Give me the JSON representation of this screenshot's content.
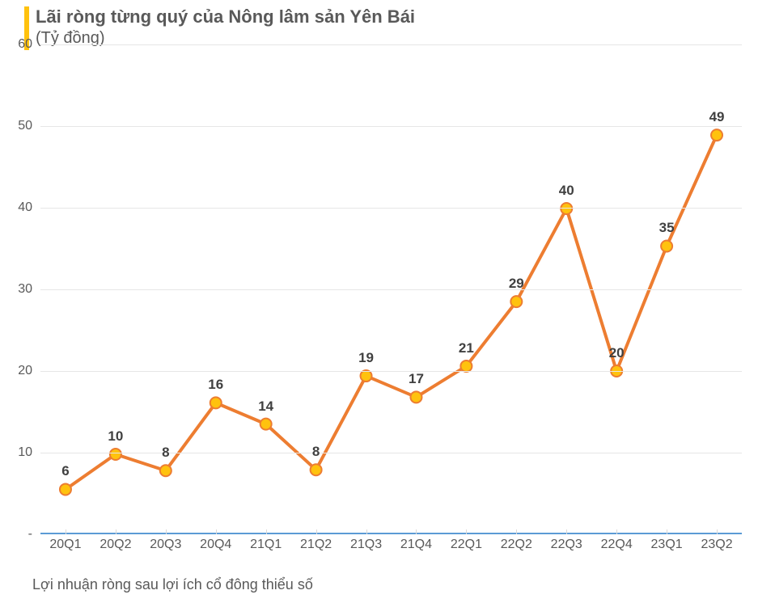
{
  "chart": {
    "type": "line",
    "title": "Lãi ròng từng quý của Nông lâm sản Yên Bái",
    "subtitle": "(Tỷ đồng)",
    "footer_note": "Lợi nhuận ròng sau lợi ích cổ đông thiểu số",
    "accent_color": "#ffc20e",
    "line_color": "#ed7d31",
    "line_width": 4,
    "marker_fill": "#ffc20e",
    "marker_stroke": "#ed7d31",
    "marker_stroke_width": 2,
    "marker_radius": 7,
    "grid_color": "#e6e6e6",
    "axis_color": "#5b9bd5",
    "text_color": "#595959",
    "data_label_color": "#404040",
    "title_fontsize": 22,
    "subtitle_fontsize": 20,
    "label_fontsize": 16,
    "data_label_fontsize": 17,
    "footer_fontsize": 18,
    "ylim": [
      0,
      60
    ],
    "ytick_step": 10,
    "y_ticks": [
      0,
      10,
      20,
      30,
      40,
      50,
      60
    ],
    "y_tick_labels": [
      "-",
      "10",
      "20",
      "30",
      "40",
      "50",
      "60"
    ],
    "categories": [
      "20Q1",
      "20Q2",
      "20Q3",
      "20Q4",
      "21Q1",
      "21Q2",
      "21Q3",
      "21Q4",
      "22Q1",
      "22Q2",
      "22Q3",
      "22Q4",
      "23Q1",
      "23Q2"
    ],
    "display_values": [
      6,
      10,
      8,
      16,
      14,
      8,
      19,
      17,
      21,
      29,
      40,
      20,
      35,
      49
    ],
    "plot_values": [
      5.5,
      9.8,
      7.8,
      16.1,
      13.5,
      7.9,
      19.4,
      16.8,
      20.6,
      28.5,
      39.9,
      20.0,
      35.3,
      48.9
    ],
    "background_color": "#ffffff"
  }
}
